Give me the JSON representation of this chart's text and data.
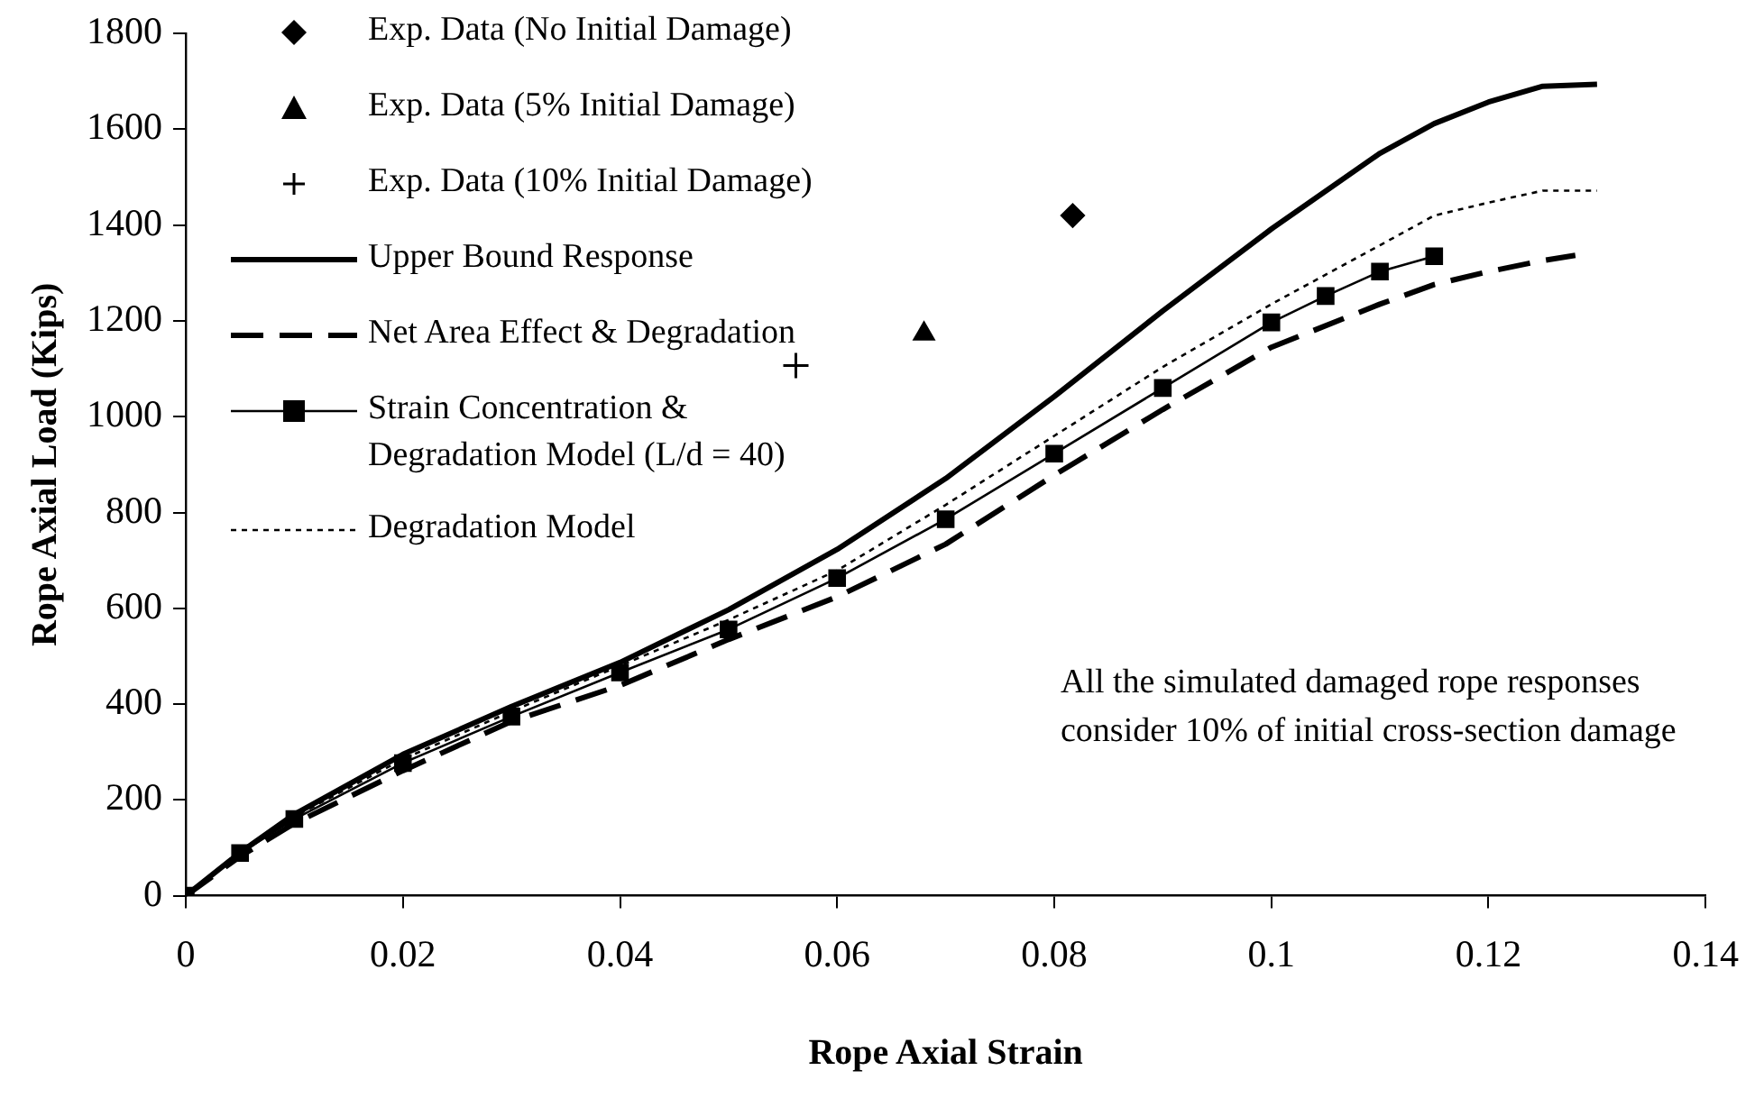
{
  "chart_data": {
    "type": "line",
    "xlabel": "Rope Axial Strain",
    "ylabel": "Rope Axial Load (Kips)",
    "xlim": [
      0,
      0.14
    ],
    "xticks": [
      0,
      0.02,
      0.04,
      0.06,
      0.08,
      0.1,
      0.12,
      0.14
    ],
    "ylim": [
      0,
      1800
    ],
    "yticks": [
      0,
      200,
      400,
      600,
      800,
      1000,
      1200,
      1400,
      1600,
      1800
    ],
    "legend": "top left",
    "annotations": [
      "All the simulated damaged rope responses consider 10% of initial cross-section damage"
    ],
    "series": [
      {
        "name": "Exp. Data (No Initial Damage)",
        "type": "scatter",
        "color": "#000000",
        "marker": "diamond",
        "x": [
          0.0817
        ],
        "values": [
          1420
        ]
      },
      {
        "name": "Exp. Data (5% Initial Damage)",
        "type": "scatter",
        "color": "#000000",
        "marker": "triangle",
        "x": [
          0.068
        ],
        "values": [
          1173
        ]
      },
      {
        "name": "Exp. Data (10% Initial Damage)",
        "type": "scatter",
        "color": "#000000",
        "marker": "cross",
        "x": [
          0.0562
        ],
        "values": [
          1107
        ]
      },
      {
        "name": "Upper Bound Response",
        "color": "#000000",
        "marker": "none",
        "line_style": "solid",
        "x": [
          0,
          0.005,
          0.01,
          0.02,
          0.03,
          0.04,
          0.05,
          0.06,
          0.07,
          0.08,
          0.09,
          0.1,
          0.11,
          0.115,
          0.12,
          0.125,
          0.13
        ],
        "values": [
          0,
          90,
          170,
          295,
          395,
          487,
          597,
          723,
          871,
          1042,
          1221,
          1392,
          1550,
          1612,
          1657,
          1690,
          1694
        ]
      },
      {
        "name": "Net Area Effect & Degradation",
        "color": "#000000",
        "marker": "none",
        "line_style": "dashed",
        "x": [
          0,
          0.005,
          0.01,
          0.02,
          0.03,
          0.04,
          0.05,
          0.06,
          0.07,
          0.08,
          0.09,
          0.1,
          0.11,
          0.115,
          0.12,
          0.125,
          0.128
        ],
        "values": [
          0,
          82,
          151,
          261,
          364,
          439,
          535,
          624,
          734,
          878,
          1015,
          1145,
          1235,
          1276,
          1303,
          1326,
          1337
        ]
      },
      {
        "name": "Strain Concentration & Degradation Model (L/d = 40)",
        "color": "#000000",
        "marker": "square",
        "line_style": "solid",
        "x": [
          0,
          0.005,
          0.01,
          0.02,
          0.03,
          0.04,
          0.05,
          0.06,
          0.07,
          0.08,
          0.09,
          0.1,
          0.105,
          0.11,
          0.115
        ],
        "values": [
          0,
          89,
          160,
          277,
          374,
          466,
          556,
          663,
          786,
          923,
          1060,
          1197,
          1252,
          1303,
          1335
        ]
      },
      {
        "name": "Degradation Model",
        "color": "#000000",
        "marker": "none",
        "line_style": "dotted",
        "x": [
          0,
          0.005,
          0.01,
          0.02,
          0.03,
          0.04,
          0.05,
          0.06,
          0.07,
          0.08,
          0.09,
          0.1,
          0.11,
          0.115,
          0.12,
          0.125,
          0.13
        ],
        "values": [
          0,
          90,
          165,
          285,
          385,
          480,
          576,
          679,
          816,
          960,
          1104,
          1235,
          1358,
          1420,
          1447,
          1472,
          1472
        ]
      }
    ]
  }
}
